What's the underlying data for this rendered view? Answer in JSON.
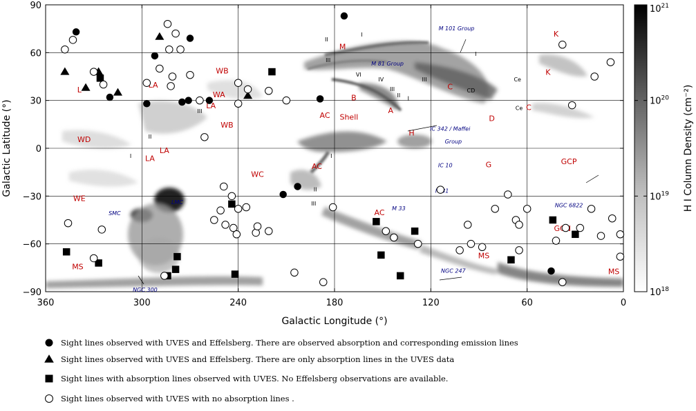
{
  "chart_data": {
    "type": "scatter",
    "xlabel": "Galactic Longitude (°)",
    "ylabel": "Galactic Latitude (°)",
    "xlim": [
      360,
      0
    ],
    "ylim": [
      -90,
      90
    ],
    "xticks": [
      360,
      300,
      240,
      180,
      120,
      60,
      0
    ],
    "yticks": [
      90,
      60,
      30,
      0,
      -30,
      -60,
      -90
    ],
    "xtick_labels": [
      "360",
      "300",
      "240",
      "180",
      "120",
      "60",
      "0"
    ],
    "ytick_labels": [
      "90",
      "60",
      "30",
      "0",
      "−30",
      "−60",
      "−90"
    ],
    "grid": true,
    "colorbar": {
      "label": "H I Column Density (cm⁻²)",
      "ticks": [
        {
          "base": "10",
          "exp": "21",
          "value": 21
        },
        {
          "base": "10",
          "exp": "20",
          "value": 20
        },
        {
          "base": "10",
          "exp": "19",
          "value": 19
        },
        {
          "base": "10",
          "exp": "18",
          "value": 18
        }
      ],
      "range": [
        18,
        21
      ]
    },
    "series": [
      {
        "name": "Sight lines observed with UVES  and Effelsberg. There are observed absorption and corresponding emission lines",
        "marker": "filled-circle",
        "points": [
          [
            174,
            83
          ],
          [
            341,
            73
          ],
          [
            292,
            58
          ],
          [
            270,
            69
          ],
          [
            320,
            32
          ],
          [
            297,
            28
          ],
          [
            271,
            30
          ],
          [
            275,
            29
          ],
          [
            258,
            30
          ],
          [
            189,
            31
          ],
          [
            203,
            -24
          ],
          [
            212,
            -29
          ],
          [
            45,
            -77
          ]
        ]
      },
      {
        "name": "Sight lines observed with UVES  and Effelsberg. There are only absorption lines in the UVES data",
        "marker": "filled-triangle",
        "points": [
          [
            289,
            70
          ],
          [
            348,
            48
          ],
          [
            327,
            48
          ],
          [
            335,
            38
          ],
          [
            315,
            35
          ],
          [
            234,
            33
          ]
        ]
      },
      {
        "name": "Sight lines with absorption lines observed with UVES. No Effelsberg observations are available.",
        "marker": "filled-square",
        "points": [
          [
            326,
            44
          ],
          [
            219,
            48
          ],
          [
            244,
            -35
          ],
          [
            154,
            -46
          ],
          [
            130,
            -52
          ],
          [
            347,
            -65
          ],
          [
            327,
            -72
          ],
          [
            278,
            -68
          ],
          [
            279,
            -76
          ],
          [
            284,
            -80
          ],
          [
            242,
            -79
          ],
          [
            151,
            -67
          ],
          [
            139,
            -80
          ],
          [
            70,
            -70
          ],
          [
            44,
            -45
          ],
          [
            30,
            -54
          ]
        ]
      },
      {
        "name": "Sight lines observed with UVES with no absorption lines .",
        "marker": "open-circle",
        "points": [
          [
            348,
            62
          ],
          [
            343,
            68
          ],
          [
            284,
            78
          ],
          [
            279,
            72
          ],
          [
            276,
            62
          ],
          [
            283,
            62
          ],
          [
            324,
            40
          ],
          [
            330,
            48
          ],
          [
            297,
            41
          ],
          [
            289,
            50
          ],
          [
            281,
            45
          ],
          [
            282,
            39
          ],
          [
            270,
            46
          ],
          [
            264,
            30
          ],
          [
            240,
            28
          ],
          [
            240,
            41
          ],
          [
            234,
            37
          ],
          [
            221,
            36
          ],
          [
            210,
            30
          ],
          [
            261,
            7
          ],
          [
            244,
            -30
          ],
          [
            249,
            -24
          ],
          [
            240,
            -38
          ],
          [
            248,
            -48
          ],
          [
            251,
            -39
          ],
          [
            243,
            -50
          ],
          [
            241,
            -54
          ],
          [
            255,
            -45
          ],
          [
            229,
            -53
          ],
          [
            221,
            -52
          ],
          [
            228,
            -49
          ],
          [
            235,
            -37
          ],
          [
            181,
            -37
          ],
          [
            148,
            -52
          ],
          [
            143,
            -56
          ],
          [
            128,
            -60
          ],
          [
            114,
            -26
          ],
          [
            346,
            -47
          ],
          [
            325,
            -51
          ],
          [
            330,
            -69
          ],
          [
            286,
            -80
          ],
          [
            205,
            -78
          ],
          [
            187,
            -84
          ],
          [
            102,
            -64
          ],
          [
            97,
            -48
          ],
          [
            95,
            -60
          ],
          [
            88,
            -62
          ],
          [
            80,
            -38
          ],
          [
            72,
            -29
          ],
          [
            67,
            -45
          ],
          [
            65,
            -48
          ],
          [
            65,
            -64
          ],
          [
            60,
            -38
          ],
          [
            38,
            65
          ],
          [
            18,
            45
          ],
          [
            8,
            54
          ],
          [
            32,
            27
          ],
          [
            20,
            -38
          ],
          [
            36,
            -50
          ],
          [
            42,
            -58
          ],
          [
            27,
            -50
          ],
          [
            38,
            -84
          ],
          [
            14,
            -55
          ],
          [
            7,
            -44
          ],
          [
            2,
            -54
          ],
          [
            2,
            -68
          ]
        ]
      }
    ],
    "region_labels": [
      {
        "text": "L",
        "l": 339,
        "b": 35
      },
      {
        "text": "LA",
        "l": 293,
        "b": 38
      },
      {
        "text": "WB",
        "l": 250,
        "b": 47
      },
      {
        "text": "WA",
        "l": 252,
        "b": 32
      },
      {
        "text": "LA",
        "l": 257,
        "b": 25
      },
      {
        "text": "WB",
        "l": 247,
        "b": 13
      },
      {
        "text": "LA",
        "l": 286,
        "b": -3
      },
      {
        "text": "WD",
        "l": 336,
        "b": 4
      },
      {
        "text": "LA",
        "l": 295,
        "b": -8
      },
      {
        "text": "WE",
        "l": 339,
        "b": -33
      },
      {
        "text": "WC",
        "l": 228,
        "b": -18
      },
      {
        "text": "AC",
        "l": 191,
        "b": -13
      },
      {
        "text": "AC",
        "l": 186,
        "b": 19
      },
      {
        "text": "Shell",
        "l": 171,
        "b": 18
      },
      {
        "text": "M",
        "l": 175,
        "b": 62
      },
      {
        "text": "B",
        "l": 168,
        "b": 30
      },
      {
        "text": "A",
        "l": 145,
        "b": 22
      },
      {
        "text": "C",
        "l": 108,
        "b": 37
      },
      {
        "text": "D",
        "l": 82,
        "b": 17
      },
      {
        "text": "K",
        "l": 47,
        "b": 46
      },
      {
        "text": "K",
        "l": 42,
        "b": 70
      },
      {
        "text": "C",
        "l": 59,
        "b": 24
      },
      {
        "text": "H",
        "l": 132,
        "b": 8
      },
      {
        "text": "G",
        "l": 84,
        "b": -12
      },
      {
        "text": "GCP",
        "l": 34,
        "b": -10
      },
      {
        "text": "GCN",
        "l": 38,
        "b": -52
      },
      {
        "text": "AC",
        "l": 152,
        "b": -42
      },
      {
        "text": "MS",
        "l": 340,
        "b": -76
      },
      {
        "text": "MS",
        "l": 87,
        "b": -69
      },
      {
        "text": "MS",
        "l": 6,
        "b": -79
      }
    ],
    "object_labels": [
      {
        "text": "M 101 Group",
        "l": 104,
        "b": 74
      },
      {
        "text": "M 81 Group",
        "l": 147,
        "b": 52
      },
      {
        "text": "IC 342 / Maffei",
        "l": 108,
        "b": 11
      },
      {
        "text": "Group",
        "l": 106,
        "b": 3
      },
      {
        "text": "IC 10",
        "l": 111,
        "b": -12
      },
      {
        "text": "M 31",
        "l": 113,
        "b": -28
      },
      {
        "text": "M 33",
        "l": 140,
        "b": -39
      },
      {
        "text": "NGC 6822",
        "l": 34,
        "b": -37
      },
      {
        "text": "SMC",
        "l": 317,
        "b": -42
      },
      {
        "text": "LMC",
        "l": 278,
        "b": -35
      },
      {
        "text": "NGC 300",
        "l": 298,
        "b": -90
      },
      {
        "text": "NGC 247",
        "l": 106,
        "b": -78
      }
    ],
    "complex_labels": [
      {
        "text": "II",
        "l": 185,
        "b": 67
      },
      {
        "text": "I",
        "l": 163,
        "b": 70
      },
      {
        "text": "III",
        "l": 184,
        "b": 54
      },
      {
        "text": "VI",
        "l": 165,
        "b": 45
      },
      {
        "text": "IV",
        "l": 151,
        "b": 42
      },
      {
        "text": "III",
        "l": 144,
        "b": 36
      },
      {
        "text": "II",
        "l": 140,
        "b": 32
      },
      {
        "text": "I",
        "l": 134,
        "b": 30
      },
      {
        "text": "III",
        "l": 124,
        "b": 42
      },
      {
        "text": "I",
        "l": 92,
        "b": 58
      },
      {
        "text": "CD",
        "l": 95,
        "b": 35
      },
      {
        "text": "Ce",
        "l": 66,
        "b": 42
      },
      {
        "text": "Ce",
        "l": 65,
        "b": 24
      },
      {
        "text": "II",
        "l": 295,
        "b": 6
      },
      {
        "text": "III",
        "l": 264,
        "b": 22
      },
      {
        "text": "I",
        "l": 307,
        "b": -6
      },
      {
        "text": "I",
        "l": 182,
        "b": -6
      },
      {
        "text": "II",
        "l": 192,
        "b": -27
      },
      {
        "text": "III",
        "l": 193,
        "b": -36
      }
    ]
  }
}
